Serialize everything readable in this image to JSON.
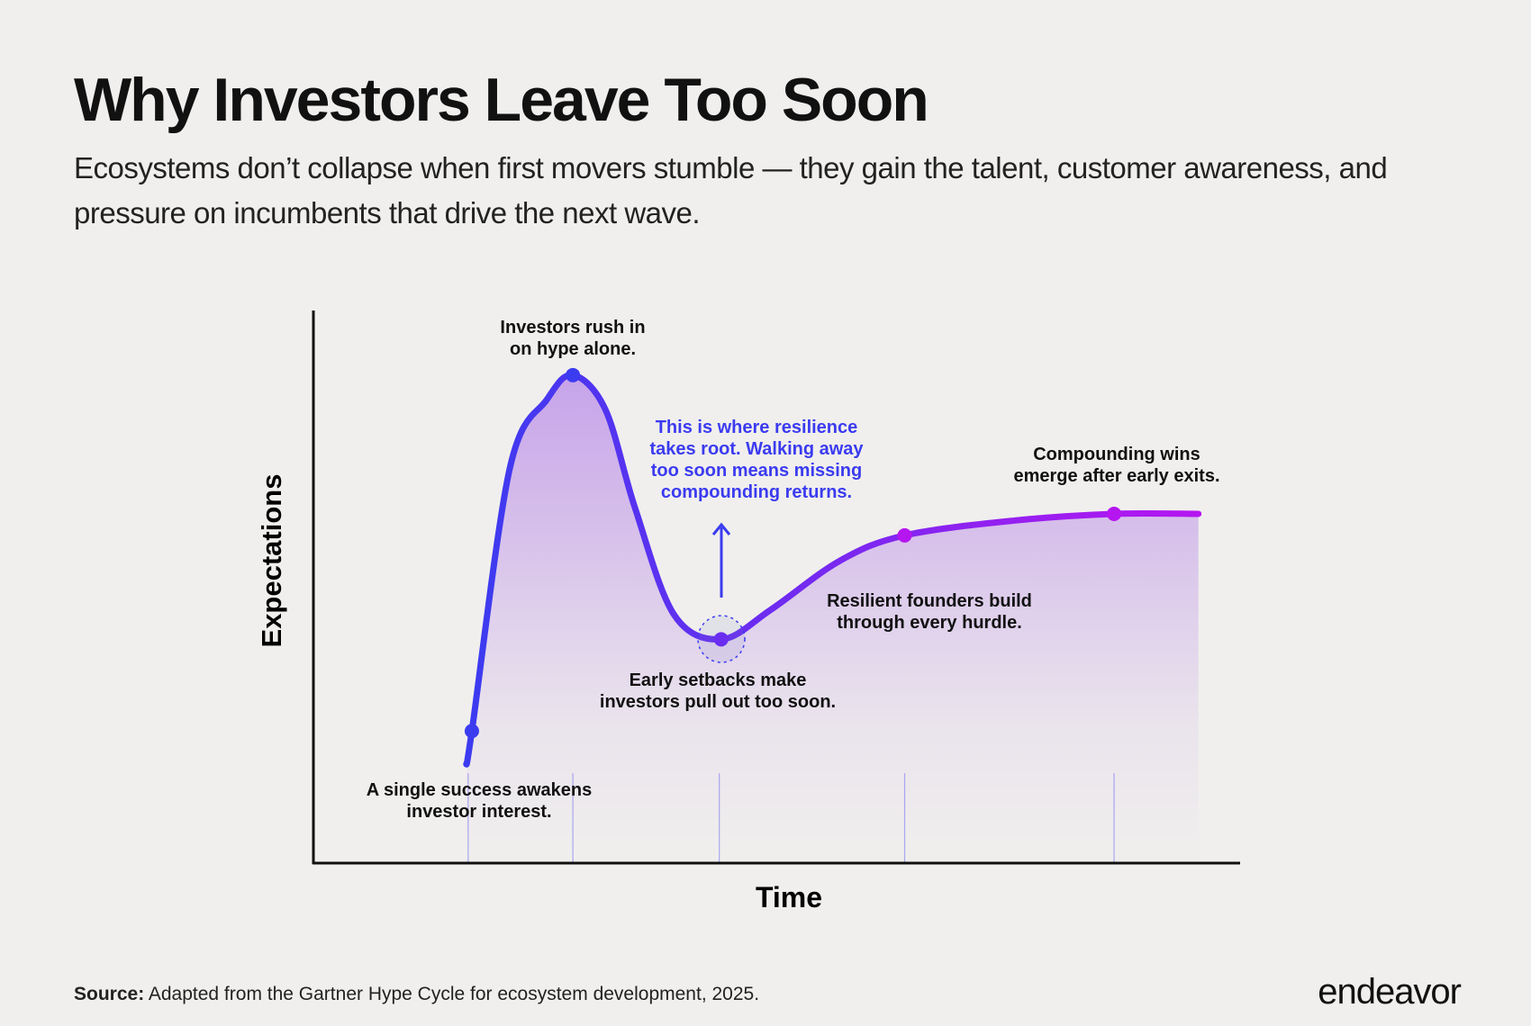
{
  "header": {
    "title": "Why Investors Leave Too Soon",
    "subtitle": "Ecosystems don’t collapse when first movers stumble — they gain the talent, customer awareness, and pressure on incumbents that drive the next wave."
  },
  "chart_data": {
    "type": "line",
    "title": "",
    "xlabel": "Time",
    "ylabel": "Expectations",
    "xlim": [
      0,
      100
    ],
    "ylim": [
      0,
      100
    ],
    "grid": false,
    "series": [
      {
        "name": "Hype cycle",
        "x": [
          16.5,
          17.1,
          21.2,
          25.2,
          28,
          31.5,
          34.7,
          38.9,
          44,
          49.4,
          56.8,
          63.8,
          75.7,
          86.4,
          95.5
        ],
        "y": [
          17.9,
          23.9,
          71.5,
          83.9,
          88.3,
          82.1,
          64.3,
          45,
          40.5,
          45.9,
          54.7,
          59.3,
          62,
          63.2,
          63.2
        ]
      }
    ],
    "markers": [
      {
        "x": 17.1,
        "y": 23.9
      },
      {
        "x": 28,
        "y": 88.3
      },
      {
        "x": 44,
        "y": 40.5
      },
      {
        "x": 63.8,
        "y": 59.3
      },
      {
        "x": 86.4,
        "y": 63.2
      }
    ],
    "guides": [
      16.7,
      28,
      43.8,
      63.8,
      86.4
    ],
    "annotations": [
      {
        "text": "Investors rush in\non hype alone.",
        "color": "#111111"
      },
      {
        "text": "This is where resilience\ntakes root. Walking away\ntoo soon means missing\ncompounding returns.",
        "color": "#3b3bf0"
      },
      {
        "text": "Compounding wins\nemerge after early exits.",
        "color": "#111111"
      },
      {
        "text": "Resilient founders build\nthrough every hurdle.",
        "color": "#111111"
      },
      {
        "text": "Early setbacks make\ninvestors pull out too soon.",
        "color": "#111111"
      },
      {
        "text": "A single success awakens\ninvestor interest.",
        "color": "#111111"
      }
    ],
    "colors": {
      "start": "#3b3bf0",
      "end": "#b516f0",
      "fill": "#b98ae8"
    }
  },
  "footer": {
    "source_label": "Source:",
    "source_text": " Adapted from the Gartner Hype Cycle for ecosystem development, 2025.",
    "logo": "endeavor"
  }
}
